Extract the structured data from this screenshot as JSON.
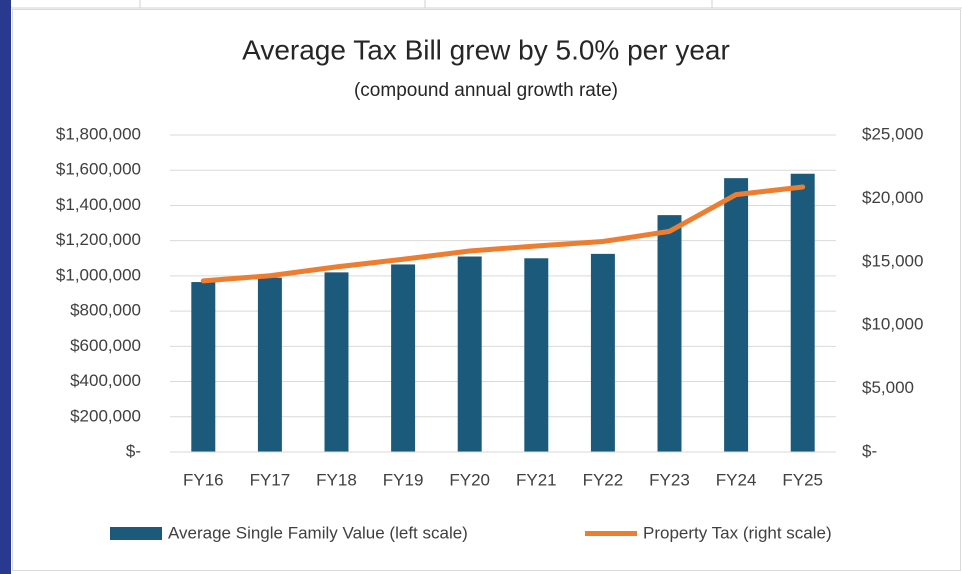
{
  "chart_data": {
    "type": "bar",
    "title": "Average Tax Bill grew by 5.0% per year",
    "subtitle": "(compound annual growth rate)",
    "categories": [
      "FY16",
      "FY17",
      "FY18",
      "FY19",
      "FY20",
      "FY21",
      "FY22",
      "FY23",
      "FY24",
      "FY25"
    ],
    "series": [
      {
        "name": "Average Single Family Value (left scale)",
        "type": "bar",
        "color": "#1b5a7b",
        "values": [
          965000,
          990000,
          1020000,
          1065000,
          1110000,
          1100000,
          1125000,
          1345000,
          1555000,
          1580000
        ]
      },
      {
        "name": "Property Tax (right scale)",
        "type": "line",
        "axis": "y2",
        "color": "#ed7d31",
        "values": [
          13500,
          13900,
          14600,
          15200,
          15850,
          16250,
          16600,
          17400,
          20300,
          20900
        ]
      }
    ],
    "ylim": [
      0,
      1800000
    ],
    "yticks": [
      {
        "value": 0,
        "label": "$-"
      },
      {
        "value": 200000,
        "label": "$200,000"
      },
      {
        "value": 400000,
        "label": "$400,000"
      },
      {
        "value": 600000,
        "label": "$600,000"
      },
      {
        "value": 800000,
        "label": "$800,000"
      },
      {
        "value": 1000000,
        "label": "$1,000,000"
      },
      {
        "value": 1200000,
        "label": "$1,200,000"
      },
      {
        "value": 1400000,
        "label": "$1,400,000"
      },
      {
        "value": 1600000,
        "label": "$1,600,000"
      },
      {
        "value": 1800000,
        "label": "$1,800,000"
      }
    ],
    "y2lim": [
      0,
      25000
    ],
    "y2ticks": [
      {
        "value": 0,
        "label": "$-"
      },
      {
        "value": 5000,
        "label": "$5,000"
      },
      {
        "value": 10000,
        "label": "$10,000"
      },
      {
        "value": 15000,
        "label": "$15,000"
      },
      {
        "value": 20000,
        "label": "$20,000"
      },
      {
        "value": 25000,
        "label": "$25,000"
      }
    ],
    "grid": true,
    "legend": "bottom"
  }
}
